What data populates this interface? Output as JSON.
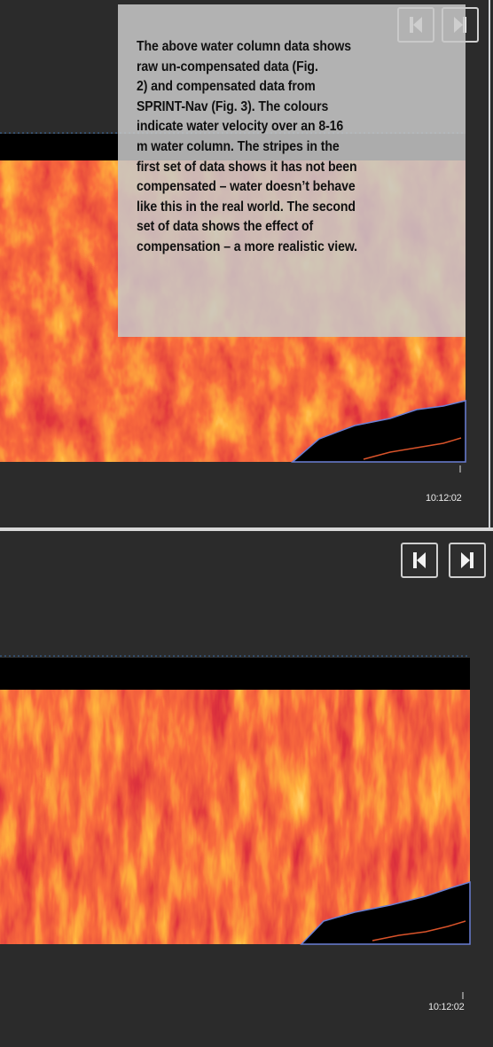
{
  "caption": {
    "lines": [
      "The above water column data shows",
      "raw un-compensated data (Fig.",
      "2) and compensated data from",
      "SPRINT-Nav (Fig. 3). The colours",
      "indicate water velocity over an 8-16",
      "m water column. The stripes in the",
      "first set of data shows it has not been",
      "compensated – water doesn’t behave",
      "like this in the real world. The second",
      "set of data shows the effect of",
      "compensation – a more realistic view."
    ]
  },
  "top_panel": {
    "timestamp": "10:12:02"
  },
  "bottom_panel": {
    "timestamp": "10:12:02"
  }
}
